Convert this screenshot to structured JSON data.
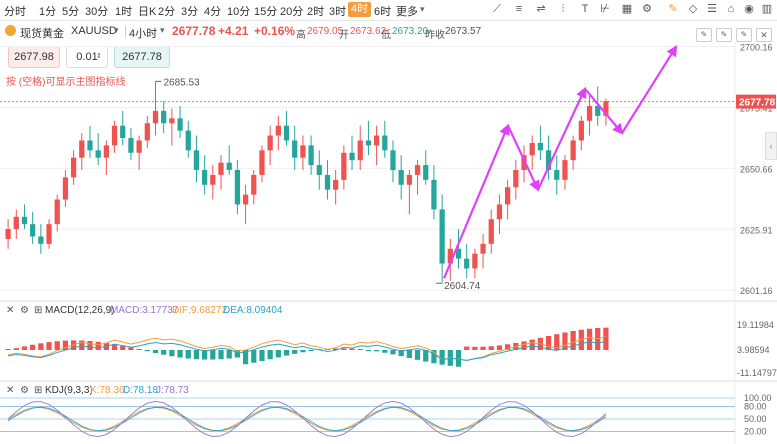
{
  "toolbar": {
    "timeframes": [
      "分时",
      "1分",
      "5分",
      "30分",
      "1时",
      "日K",
      "2分",
      "3分",
      "4分",
      "10分",
      "15分",
      "20分",
      "2时",
      "3时",
      "4时",
      "6时",
      "更多"
    ],
    "active": "4时",
    "tools": [
      "trend-line-icon",
      "draw-icon",
      "ruler-icon",
      "text-icon",
      "fib-icon",
      "calendar-icon",
      "pencil-icon",
      "eraser-icon",
      "layers-icon",
      "visibility-icon",
      "settings-icon"
    ]
  },
  "symbol": {
    "name": "现货黄金",
    "code": "XAUUSD",
    "period": "4小时",
    "price": "2677.78",
    "change": "+4.21",
    "change_pct": "+0.16%",
    "high_label": "高",
    "high": "2679.05",
    "open_label": "开",
    "open": "2673.62",
    "low_label": "低",
    "low": "2673.20",
    "prev_label": "昨收",
    "prev": "2673.57"
  },
  "trade": {
    "sell_price": "2677.98",
    "lot": "0.01",
    "buy_price": "2677.78"
  },
  "note": "按 (空格)可显示主图指标线",
  "chart_data": {
    "type": "candlestick",
    "y_axis_labels": [
      "2700.16",
      "2675.41",
      "2650.66",
      "2625.91",
      "2601.16"
    ],
    "current_price_label": "2677.78",
    "annotations": [
      {
        "text": "2685.53",
        "type": "max"
      },
      {
        "text": "2604.74",
        "type": "min"
      }
    ],
    "ohlc": [
      [
        2622,
        2630,
        2618,
        2626
      ],
      [
        2626,
        2634,
        2622,
        2631
      ],
      [
        2631,
        2636,
        2626,
        2628
      ],
      [
        2628,
        2633,
        2620,
        2623
      ],
      [
        2623,
        2628,
        2616,
        2620
      ],
      [
        2620,
        2630,
        2618,
        2628
      ],
      [
        2628,
        2640,
        2625,
        2638
      ],
      [
        2638,
        2650,
        2635,
        2647
      ],
      [
        2647,
        2658,
        2644,
        2655
      ],
      [
        2655,
        2665,
        2650,
        2662
      ],
      [
        2662,
        2668,
        2655,
        2658
      ],
      [
        2658,
        2665,
        2652,
        2655
      ],
      [
        2655,
        2662,
        2648,
        2660
      ],
      [
        2660,
        2670,
        2657,
        2668
      ],
      [
        2668,
        2674,
        2660,
        2663
      ],
      [
        2663,
        2667,
        2654,
        2657
      ],
      [
        2657,
        2664,
        2650,
        2662
      ],
      [
        2662,
        2672,
        2659,
        2669
      ],
      [
        2669,
        2686,
        2664,
        2674
      ],
      [
        2674,
        2678,
        2665,
        2669
      ],
      [
        2669,
        2675,
        2660,
        2671
      ],
      [
        2671,
        2676,
        2663,
        2666
      ],
      [
        2666,
        2670,
        2655,
        2658
      ],
      [
        2658,
        2664,
        2645,
        2650
      ],
      [
        2650,
        2656,
        2640,
        2644
      ],
      [
        2644,
        2652,
        2638,
        2648
      ],
      [
        2648,
        2656,
        2642,
        2653
      ],
      [
        2653,
        2660,
        2648,
        2650
      ],
      [
        2650,
        2654,
        2632,
        2636
      ],
      [
        2636,
        2644,
        2628,
        2640
      ],
      [
        2640,
        2650,
        2636,
        2648
      ],
      [
        2648,
        2660,
        2645,
        2658
      ],
      [
        2658,
        2668,
        2652,
        2664
      ],
      [
        2664,
        2672,
        2658,
        2668
      ],
      [
        2668,
        2674,
        2660,
        2662
      ],
      [
        2662,
        2668,
        2650,
        2655
      ],
      [
        2655,
        2664,
        2650,
        2660
      ],
      [
        2660,
        2664,
        2648,
        2652
      ],
      [
        2652,
        2658,
        2642,
        2648
      ],
      [
        2648,
        2654,
        2638,
        2642
      ],
      [
        2642,
        2650,
        2636,
        2646
      ],
      [
        2646,
        2660,
        2642,
        2657
      ],
      [
        2657,
        2664,
        2650,
        2654
      ],
      [
        2654,
        2668,
        2650,
        2662
      ],
      [
        2662,
        2670,
        2656,
        2660
      ],
      [
        2660,
        2668,
        2652,
        2664
      ],
      [
        2664,
        2670,
        2655,
        2658
      ],
      [
        2658,
        2662,
        2645,
        2650
      ],
      [
        2650,
        2656,
        2638,
        2644
      ],
      [
        2644,
        2650,
        2632,
        2648
      ],
      [
        2648,
        2654,
        2640,
        2652
      ],
      [
        2652,
        2658,
        2644,
        2646
      ],
      [
        2646,
        2652,
        2630,
        2634
      ],
      [
        2634,
        2640,
        2604,
        2612
      ],
      [
        2612,
        2622,
        2605,
        2618
      ],
      [
        2618,
        2626,
        2610,
        2614
      ],
      [
        2614,
        2620,
        2606,
        2610
      ],
      [
        2610,
        2618,
        2606,
        2616
      ],
      [
        2616,
        2624,
        2610,
        2620
      ],
      [
        2620,
        2634,
        2616,
        2630
      ],
      [
        2630,
        2640,
        2624,
        2636
      ],
      [
        2636,
        2646,
        2630,
        2643
      ],
      [
        2643,
        2654,
        2638,
        2650
      ],
      [
        2650,
        2660,
        2645,
        2656
      ],
      [
        2656,
        2664,
        2650,
        2661
      ],
      [
        2661,
        2668,
        2654,
        2658
      ],
      [
        2658,
        2664,
        2646,
        2650
      ],
      [
        2650,
        2656,
        2640,
        2646
      ],
      [
        2646,
        2656,
        2642,
        2654
      ],
      [
        2654,
        2664,
        2650,
        2662
      ],
      [
        2662,
        2672,
        2658,
        2670
      ],
      [
        2670,
        2680,
        2664,
        2676
      ],
      [
        2676,
        2684,
        2668,
        2672
      ],
      [
        2672,
        2679,
        2668,
        2678
      ]
    ],
    "projection_arrows": [
      {
        "from": [
          2606,
          0
        ],
        "to": [
          2668,
          0
        ]
      },
      {
        "from": [
          2668,
          0
        ],
        "to": [
          2642,
          0
        ]
      },
      {
        "from": [
          2642,
          0
        ],
        "to": [
          2683,
          0
        ]
      },
      {
        "from": [
          2683,
          0
        ],
        "to": [
          2665,
          0
        ]
      },
      {
        "from": [
          2665,
          0
        ],
        "to": [
          2700,
          0
        ]
      }
    ]
  },
  "macd": {
    "label": "MACD(12,26,9)",
    "macd": "MACD:3.17737",
    "dif": "DIF:9.68272",
    "dea": "DEA:8.09404",
    "axis": [
      "19.11984",
      "3.98594",
      "-11.14797"
    ]
  },
  "kdj": {
    "label": "KDJ(9,3,3)",
    "k": "K:78.36",
    "d": "D:78.18",
    "j": "J:78.73",
    "axis": [
      "100.00",
      "80.00",
      "50.00",
      "20.00"
    ]
  },
  "colors": {
    "up": "#ef5350",
    "down": "#26a69a",
    "arrow": "#e040fb",
    "accent": "#f39c3c"
  }
}
